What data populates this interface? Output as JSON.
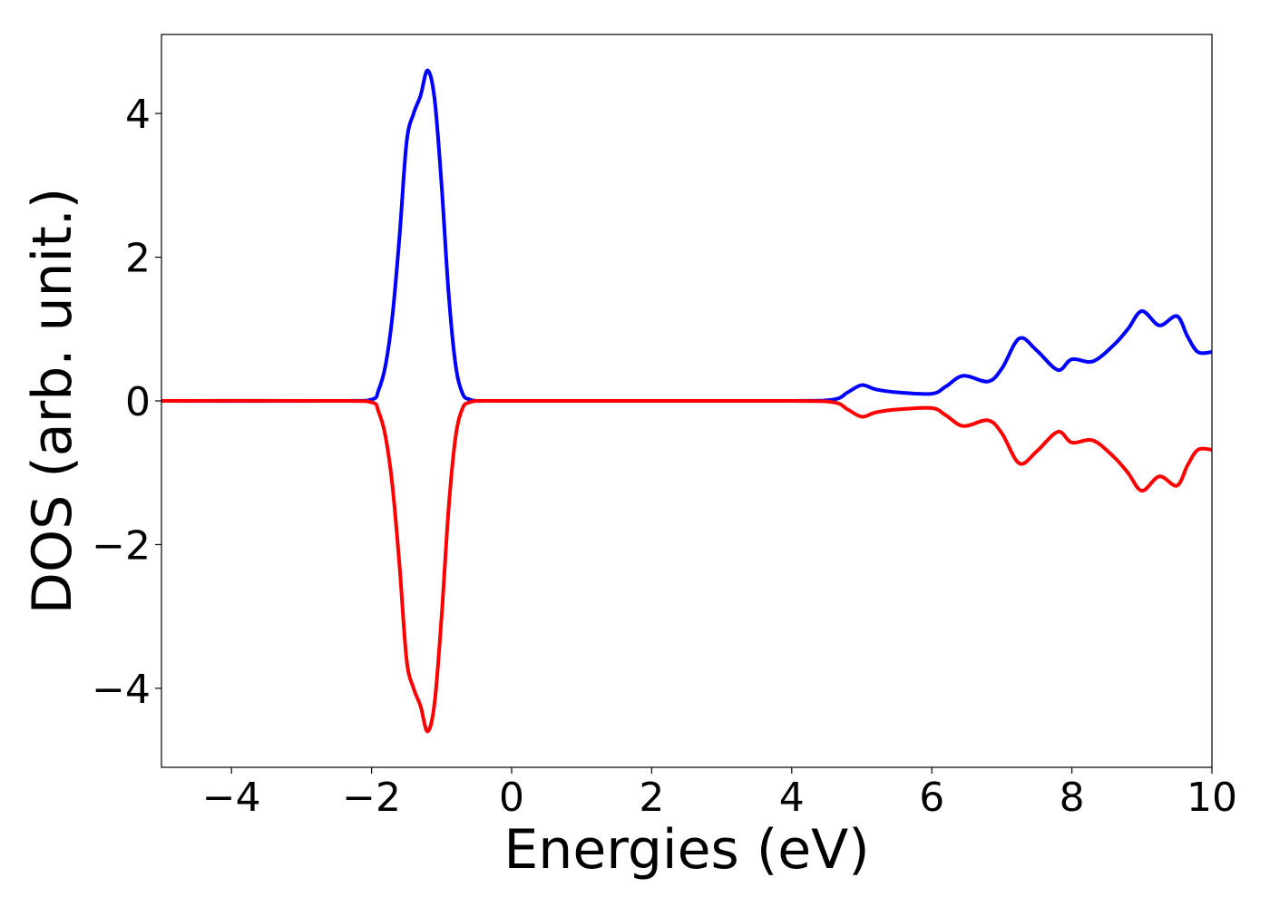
{
  "chart_data": {
    "type": "line",
    "xlabel": "Energies (eV)",
    "ylabel": "DOS (arb. unit.)",
    "xlim": [
      -5,
      10
    ],
    "ylim": [
      -5.1,
      5.1
    ],
    "x_ticks": [
      -4,
      -2,
      0,
      2,
      4,
      6,
      8,
      10
    ],
    "x_tick_labels": [
      "−4",
      "−2",
      "0",
      "2",
      "4",
      "6",
      "8",
      "10"
    ],
    "y_ticks": [
      -4,
      -2,
      0,
      2,
      4
    ],
    "y_tick_labels": [
      "−4",
      "−2",
      "0",
      "2",
      "4"
    ],
    "grid": false,
    "legend": "none",
    "series": [
      {
        "color": "#0000ff",
        "x": [
          -5,
          -2.5,
          -2.0,
          -1.9,
          -1.8,
          -1.7,
          -1.6,
          -1.5,
          -1.4,
          -1.3,
          -1.2,
          -1.1,
          -1.0,
          -0.9,
          -0.8,
          -0.7,
          -0.6,
          -0.5,
          -0.4,
          0,
          2,
          4,
          4.6,
          4.8,
          5.0,
          5.2,
          5.5,
          6.0,
          6.2,
          6.45,
          6.8,
          7.0,
          7.25,
          7.5,
          7.8,
          8.0,
          8.3,
          8.6,
          8.8,
          9.0,
          9.25,
          9.5,
          9.65,
          9.8,
          10.0
        ],
        "y": [
          0,
          0,
          0.02,
          0.15,
          0.5,
          1.2,
          2.3,
          3.6,
          4.0,
          4.25,
          4.6,
          4.2,
          3.0,
          1.5,
          0.5,
          0.1,
          0.02,
          0.0,
          0.0,
          0,
          0,
          0,
          0.02,
          0.12,
          0.22,
          0.16,
          0.12,
          0.1,
          0.2,
          0.35,
          0.27,
          0.45,
          0.87,
          0.7,
          0.43,
          0.58,
          0.55,
          0.78,
          1.0,
          1.25,
          1.05,
          1.18,
          0.9,
          0.68,
          0.68
        ]
      },
      {
        "color": "#ff0000",
        "x": [
          -5,
          -2.5,
          -2.0,
          -1.9,
          -1.8,
          -1.7,
          -1.6,
          -1.5,
          -1.4,
          -1.3,
          -1.2,
          -1.1,
          -1.0,
          -0.9,
          -0.8,
          -0.7,
          -0.6,
          -0.5,
          -0.4,
          0,
          2,
          4,
          4.6,
          4.8,
          5.0,
          5.2,
          5.5,
          6.0,
          6.2,
          6.45,
          6.8,
          7.0,
          7.25,
          7.5,
          7.8,
          8.0,
          8.3,
          8.6,
          8.8,
          9.0,
          9.25,
          9.5,
          9.65,
          9.8,
          10.0
        ],
        "y": [
          0,
          0,
          -0.02,
          -0.15,
          -0.5,
          -1.2,
          -2.3,
          -3.6,
          -4.0,
          -4.25,
          -4.6,
          -4.2,
          -3.0,
          -1.5,
          -0.5,
          -0.1,
          -0.02,
          0.0,
          0.0,
          0,
          0,
          0,
          -0.02,
          -0.12,
          -0.22,
          -0.16,
          -0.12,
          -0.1,
          -0.2,
          -0.35,
          -0.27,
          -0.45,
          -0.87,
          -0.7,
          -0.43,
          -0.58,
          -0.55,
          -0.78,
          -1.0,
          -1.25,
          -1.05,
          -1.18,
          -0.9,
          -0.68,
          -0.68
        ]
      }
    ]
  }
}
